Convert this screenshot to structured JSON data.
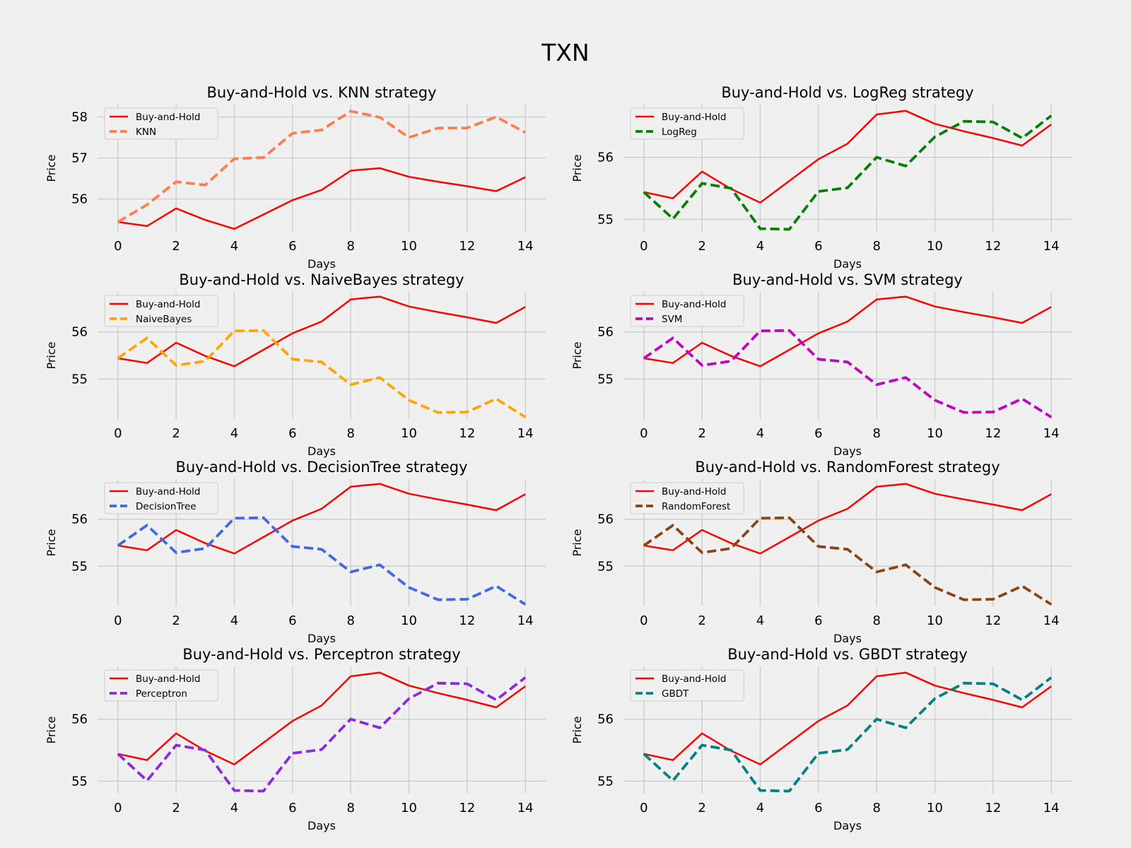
{
  "figure": {
    "title": "TXN",
    "background": "#f0f0f0",
    "grid_color": "#cbcbcb"
  },
  "chart_data": [
    {
      "type": "line",
      "title": "Buy-and-Hold vs. KNN strategy",
      "xlabel": "Days",
      "ylabel": "Price",
      "xlim": [
        -0.7,
        14.7
      ],
      "ylim": [
        55.2,
        58.3
      ],
      "xticks": [
        0,
        2,
        4,
        6,
        8,
        10,
        12,
        14
      ],
      "yticks": [
        56,
        57,
        58
      ],
      "grid": true,
      "legend_position": "top-left",
      "x": [
        0,
        1,
        2,
        3,
        4,
        5,
        6,
        7,
        8,
        9,
        10,
        11,
        12,
        13,
        14
      ],
      "series": [
        {
          "name": "Buy-and-Hold",
          "color": "#ff0000",
          "style": "solid",
          "values": [
            55.44,
            55.34,
            55.77,
            55.49,
            55.27,
            55.62,
            55.97,
            56.22,
            56.69,
            56.75,
            56.54,
            56.42,
            56.31,
            56.19,
            56.53
          ]
        },
        {
          "name": "KNN",
          "color": "#ff7f50",
          "style": "dashed",
          "values": [
            55.44,
            55.86,
            56.42,
            56.34,
            56.98,
            57.01,
            57.6,
            57.68,
            58.14,
            57.99,
            57.5,
            57.73,
            57.73,
            58.0,
            57.62
          ]
        }
      ]
    },
    {
      "type": "line",
      "title": "Buy-and-Hold vs. LogReg strategy",
      "xlabel": "Days",
      "ylabel": "Price",
      "xlim": [
        -0.7,
        14.7
      ],
      "ylim": [
        54.8,
        56.85
      ],
      "xticks": [
        0,
        2,
        4,
        6,
        8,
        10,
        12,
        14
      ],
      "yticks": [
        55,
        56
      ],
      "grid": true,
      "legend_position": "top-left",
      "x": [
        0,
        1,
        2,
        3,
        4,
        5,
        6,
        7,
        8,
        9,
        10,
        11,
        12,
        13,
        14
      ],
      "series": [
        {
          "name": "Buy-and-Hold",
          "color": "#ff0000",
          "style": "solid",
          "values": [
            55.44,
            55.34,
            55.77,
            55.49,
            55.27,
            55.62,
            55.97,
            56.22,
            56.69,
            56.75,
            56.54,
            56.42,
            56.31,
            56.19,
            56.53
          ]
        },
        {
          "name": "LogReg",
          "color": "#008000",
          "style": "dashed",
          "values": [
            55.44,
            55.01,
            55.58,
            55.5,
            54.85,
            54.84,
            55.45,
            55.51,
            56.0,
            55.86,
            56.33,
            56.58,
            56.57,
            56.31,
            56.67
          ]
        }
      ]
    },
    {
      "type": "line",
      "title": "Buy-and-Hold vs. NaiveBayes strategy",
      "xlabel": "Days",
      "ylabel": "Price",
      "xlim": [
        -0.7,
        14.7
      ],
      "ylim": [
        54.15,
        56.85
      ],
      "xticks": [
        0,
        2,
        4,
        6,
        8,
        10,
        12,
        14
      ],
      "yticks": [
        55,
        56
      ],
      "grid": true,
      "legend_position": "top-left",
      "x": [
        0,
        1,
        2,
        3,
        4,
        5,
        6,
        7,
        8,
        9,
        10,
        11,
        12,
        13,
        14
      ],
      "series": [
        {
          "name": "Buy-and-Hold",
          "color": "#ff0000",
          "style": "solid",
          "values": [
            55.44,
            55.34,
            55.77,
            55.49,
            55.27,
            55.62,
            55.97,
            56.22,
            56.69,
            56.75,
            56.54,
            56.42,
            56.31,
            56.19,
            56.53
          ]
        },
        {
          "name": "NaiveBayes",
          "color": "#ffa500",
          "style": "dashed",
          "values": [
            55.44,
            55.87,
            55.29,
            55.38,
            56.02,
            56.03,
            55.42,
            55.36,
            54.88,
            55.03,
            54.55,
            54.29,
            54.3,
            54.58,
            54.19
          ]
        }
      ]
    },
    {
      "type": "line",
      "title": "Buy-and-Hold vs. SVM strategy",
      "xlabel": "Days",
      "ylabel": "Price",
      "xlim": [
        -0.7,
        14.7
      ],
      "ylim": [
        54.15,
        56.85
      ],
      "xticks": [
        0,
        2,
        4,
        6,
        8,
        10,
        12,
        14
      ],
      "yticks": [
        55,
        56
      ],
      "grid": true,
      "legend_position": "top-left",
      "x": [
        0,
        1,
        2,
        3,
        4,
        5,
        6,
        7,
        8,
        9,
        10,
        11,
        12,
        13,
        14
      ],
      "series": [
        {
          "name": "Buy-and-Hold",
          "color": "#ff0000",
          "style": "solid",
          "values": [
            55.44,
            55.34,
            55.77,
            55.49,
            55.27,
            55.62,
            55.97,
            56.22,
            56.69,
            56.75,
            56.54,
            56.42,
            56.31,
            56.19,
            56.53
          ]
        },
        {
          "name": "SVM",
          "color": "#c000c0",
          "style": "dashed",
          "values": [
            55.44,
            55.87,
            55.29,
            55.38,
            56.02,
            56.03,
            55.42,
            55.36,
            54.88,
            55.03,
            54.55,
            54.29,
            54.3,
            54.58,
            54.19
          ]
        }
      ]
    },
    {
      "type": "line",
      "title": "Buy-and-Hold vs. DecisionTree strategy",
      "xlabel": "Days",
      "ylabel": "Price",
      "xlim": [
        -0.7,
        14.7
      ],
      "ylim": [
        54.15,
        56.85
      ],
      "xticks": [
        0,
        2,
        4,
        6,
        8,
        10,
        12,
        14
      ],
      "yticks": [
        55,
        56
      ],
      "grid": true,
      "legend_position": "top-left",
      "x": [
        0,
        1,
        2,
        3,
        4,
        5,
        6,
        7,
        8,
        9,
        10,
        11,
        12,
        13,
        14
      ],
      "series": [
        {
          "name": "Buy-and-Hold",
          "color": "#ff0000",
          "style": "solid",
          "values": [
            55.44,
            55.34,
            55.77,
            55.49,
            55.27,
            55.62,
            55.97,
            56.22,
            56.69,
            56.75,
            56.54,
            56.42,
            56.31,
            56.19,
            56.53
          ]
        },
        {
          "name": "DecisionTree",
          "color": "#4169e1",
          "style": "dashed",
          "values": [
            55.44,
            55.87,
            55.29,
            55.38,
            56.02,
            56.03,
            55.42,
            55.36,
            54.88,
            55.03,
            54.55,
            54.29,
            54.3,
            54.58,
            54.19
          ]
        }
      ]
    },
    {
      "type": "line",
      "title": "Buy-and-Hold vs. RandomForest strategy",
      "xlabel": "Days",
      "ylabel": "Price",
      "xlim": [
        -0.7,
        14.7
      ],
      "ylim": [
        54.15,
        56.85
      ],
      "xticks": [
        0,
        2,
        4,
        6,
        8,
        10,
        12,
        14
      ],
      "yticks": [
        55,
        56
      ],
      "grid": true,
      "legend_position": "top-left",
      "x": [
        0,
        1,
        2,
        3,
        4,
        5,
        6,
        7,
        8,
        9,
        10,
        11,
        12,
        13,
        14
      ],
      "series": [
        {
          "name": "Buy-and-Hold",
          "color": "#ff0000",
          "style": "solid",
          "values": [
            55.44,
            55.34,
            55.77,
            55.49,
            55.27,
            55.62,
            55.97,
            56.22,
            56.69,
            56.75,
            56.54,
            56.42,
            56.31,
            56.19,
            56.53
          ]
        },
        {
          "name": "RandomForest",
          "color": "#8b4513",
          "style": "dashed",
          "values": [
            55.44,
            55.87,
            55.29,
            55.38,
            56.02,
            56.03,
            55.42,
            55.36,
            54.88,
            55.03,
            54.55,
            54.29,
            54.3,
            54.58,
            54.19
          ]
        }
      ]
    },
    {
      "type": "line",
      "title": "Buy-and-Hold vs. Perceptron strategy",
      "xlabel": "Days",
      "ylabel": "Price",
      "xlim": [
        -0.7,
        14.7
      ],
      "ylim": [
        54.8,
        56.85
      ],
      "xticks": [
        0,
        2,
        4,
        6,
        8,
        10,
        12,
        14
      ],
      "yticks": [
        55,
        56
      ],
      "grid": true,
      "legend_position": "top-left",
      "x": [
        0,
        1,
        2,
        3,
        4,
        5,
        6,
        7,
        8,
        9,
        10,
        11,
        12,
        13,
        14
      ],
      "series": [
        {
          "name": "Buy-and-Hold",
          "color": "#ff0000",
          "style": "solid",
          "values": [
            55.44,
            55.34,
            55.77,
            55.49,
            55.27,
            55.62,
            55.97,
            56.22,
            56.69,
            56.75,
            56.54,
            56.42,
            56.31,
            56.19,
            56.53
          ]
        },
        {
          "name": "Perceptron",
          "color": "#8a2be2",
          "style": "dashed",
          "values": [
            55.44,
            55.01,
            55.58,
            55.5,
            54.85,
            54.84,
            55.45,
            55.51,
            56.0,
            55.86,
            56.33,
            56.58,
            56.57,
            56.31,
            56.67
          ]
        }
      ]
    },
    {
      "type": "line",
      "title": "Buy-and-Hold vs. GBDT strategy",
      "xlabel": "Days",
      "ylabel": "Price",
      "xlim": [
        -0.7,
        14.7
      ],
      "ylim": [
        54.8,
        56.85
      ],
      "xticks": [
        0,
        2,
        4,
        6,
        8,
        10,
        12,
        14
      ],
      "yticks": [
        55,
        56
      ],
      "grid": true,
      "legend_position": "top-left",
      "x": [
        0,
        1,
        2,
        3,
        4,
        5,
        6,
        7,
        8,
        9,
        10,
        11,
        12,
        13,
        14
      ],
      "series": [
        {
          "name": "Buy-and-Hold",
          "color": "#ff0000",
          "style": "solid",
          "values": [
            55.44,
            55.34,
            55.77,
            55.49,
            55.27,
            55.62,
            55.97,
            56.22,
            56.69,
            56.75,
            56.54,
            56.42,
            56.31,
            56.19,
            56.53
          ]
        },
        {
          "name": "GBDT",
          "color": "#008080",
          "style": "dashed",
          "values": [
            55.44,
            55.01,
            55.58,
            55.5,
            54.85,
            54.84,
            55.45,
            55.51,
            56.0,
            55.86,
            56.33,
            56.58,
            56.57,
            56.31,
            56.67
          ]
        }
      ]
    }
  ]
}
